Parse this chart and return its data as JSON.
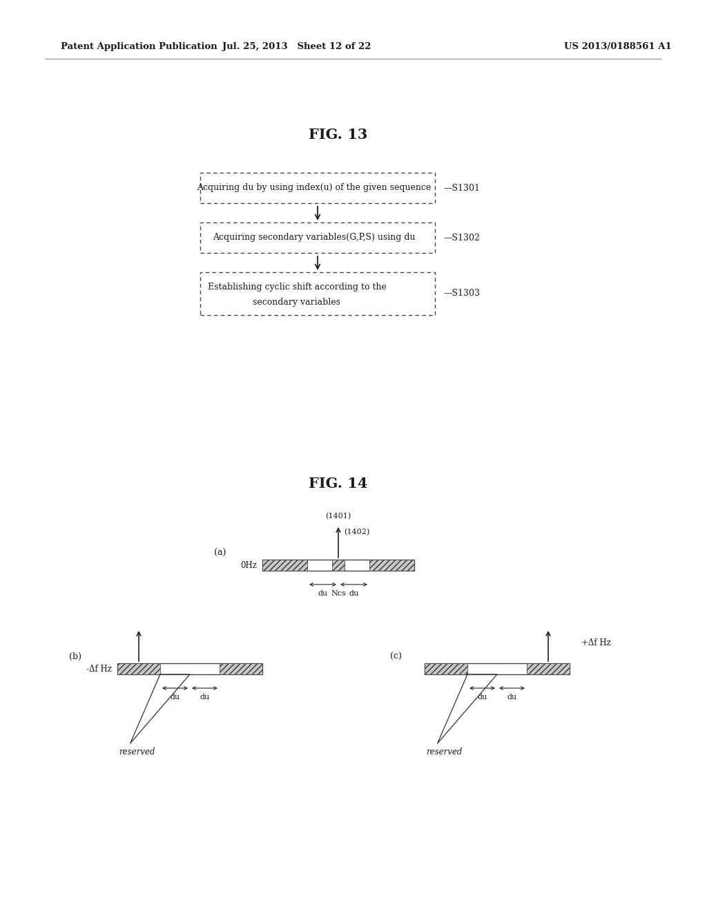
{
  "header_left": "Patent Application Publication",
  "header_mid": "Jul. 25, 2013   Sheet 12 of 22",
  "header_right": "US 2013/0188561 A1",
  "fig13_title": "FIG. 13",
  "fig14_title": "FIG. 14",
  "box1_text": "Acquiring du by using index(u) of the given sequence",
  "box1_label": "S1301",
  "box2_text": "Acquiring secondary variables(G,P,S) using du",
  "box2_label": "S1302",
  "box3_line1": "Establishing cyclic shift according to the",
  "box3_line2": "secondary variables",
  "box3_label": "S1303",
  "label_a": "(a)",
  "label_b": "(b)",
  "label_c": "(c)",
  "label_1401": "(1401)",
  "label_1402": "(1402)",
  "label_0Hz": "0Hz",
  "label_neg_delta": "-Δf Hz",
  "label_pos_delta": "+Δf Hz",
  "label_du": "du",
  "label_Ncs": "Ncs",
  "label_reserved": "reserved",
  "bg_color": "#ffffff",
  "box_edge_color": "#444444",
  "text_color": "#1a1a1a",
  "arrow_color": "#222222",
  "line_color": "#333333",
  "hatch_fc": "#c8c8c8"
}
